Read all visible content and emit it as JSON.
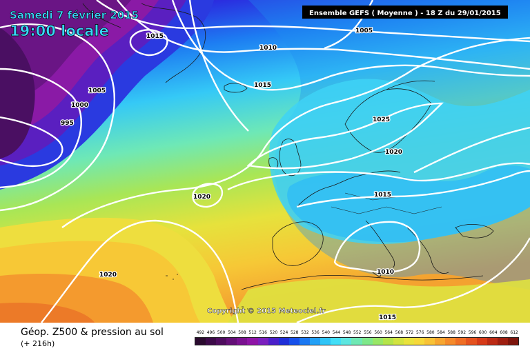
{
  "header": {
    "date_text": "Samedi 7 février 2015",
    "time_text": "19:00 locale",
    "run_text": "Ensemble GEFS  ( Moyenne )  -  18 Z du 29/01/2015"
  },
  "copyright": "Copyright © 2015 Meteociel.fr",
  "footer": {
    "title": "Géop. Z500 & pression au sol",
    "forecast": "(+ 216h)"
  },
  "isobars": [
    {
      "id": "995",
      "label": "995"
    },
    {
      "id": "1000",
      "label": "1000"
    },
    {
      "id": "1005a",
      "label": "1005"
    },
    {
      "id": "1005b",
      "label": "1005"
    },
    {
      "id": "1010",
      "label": "1010"
    },
    {
      "id": "1015a",
      "label": "1015"
    },
    {
      "id": "1015b",
      "label": "1015"
    },
    {
      "id": "1015c",
      "label": "1015"
    },
    {
      "id": "1015d",
      "label": "1015"
    },
    {
      "id": "1020a",
      "label": "1020"
    },
    {
      "id": "1020b",
      "label": "1020"
    },
    {
      "id": "1020c",
      "label": "1020"
    },
    {
      "id": "1025",
      "label": "1025"
    },
    {
      "id": "1010b",
      "label": "1010"
    }
  ],
  "scale": {
    "labels": [
      "492",
      "496",
      "500",
      "504",
      "508",
      "512",
      "516",
      "520",
      "524",
      "528",
      "532",
      "536",
      "540",
      "544",
      "548",
      "552",
      "556",
      "560",
      "564",
      "568",
      "572",
      "576",
      "580",
      "584",
      "588",
      "592",
      "596",
      "600",
      "604",
      "608",
      "612"
    ],
    "colors": [
      "#2a0a2e",
      "#3c0a48",
      "#4e0c5e",
      "#640f77",
      "#7a1190",
      "#8e14a6",
      "#7a1fbe",
      "#4a1fc9",
      "#1f2fd8",
      "#1650ea",
      "#1a78f2",
      "#22a0f6",
      "#2fc4f7",
      "#42def7",
      "#5de6e0",
      "#6fe8b4",
      "#7ee88a",
      "#98e766",
      "#b4e44a",
      "#d2e340",
      "#e9e23c",
      "#f6d83a",
      "#f8c236",
      "#f7a630",
      "#f58a2a",
      "#ef6e24",
      "#e5521e",
      "#d63a18",
      "#bc2a14",
      "#9e1e10",
      "#7d150c"
    ]
  }
}
